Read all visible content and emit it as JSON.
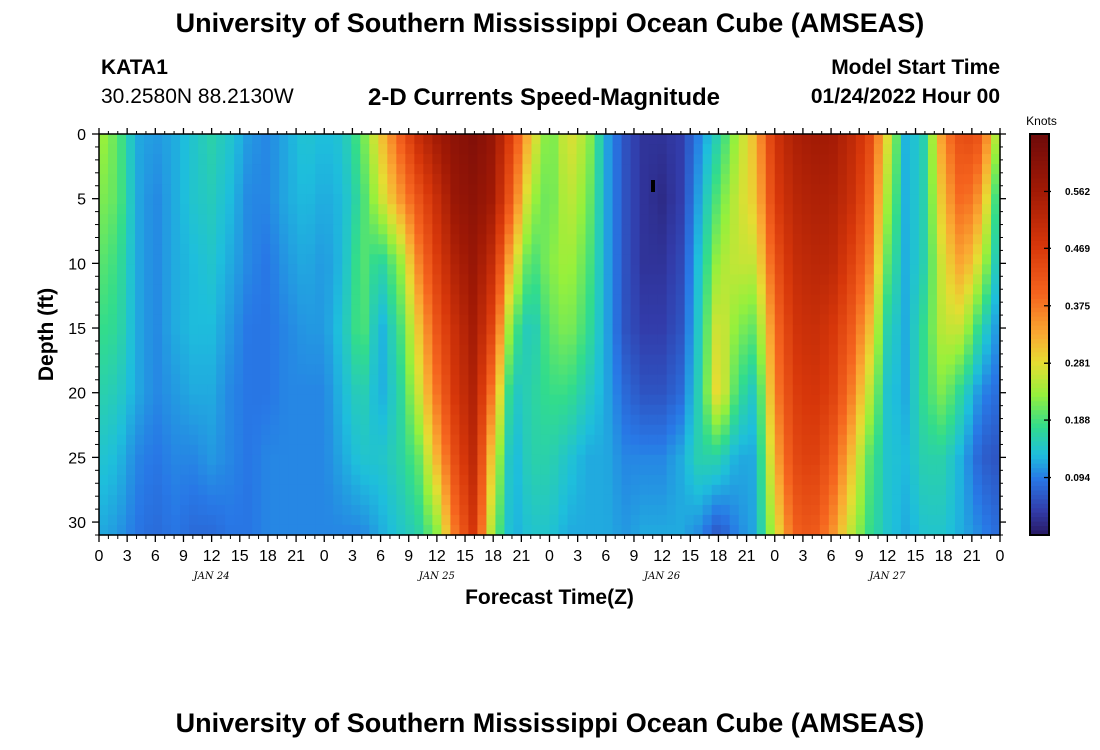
{
  "header": {
    "title": "University of Southern Mississippi Ocean Cube (AMSEAS)",
    "station_id": "KATA1",
    "coordinates": "30.2580N  88.2130W",
    "chart_title": "2-D Currents Speed-Magnitude",
    "model_start_label": "Model Start Time",
    "model_start_value": "01/24/2022 Hour 00"
  },
  "footer": {
    "title": "University of Southern Mississippi Ocean Cube (AMSEAS)"
  },
  "chart_data": {
    "type": "heatmap",
    "title": "2-D Currents Speed-Magnitude",
    "xlabel": "Forecast Time(Z)",
    "ylabel": "Depth (ft)",
    "x_unit": "hours since 01/24/2022 00Z",
    "xlim": [
      0,
      96
    ],
    "ylim": [
      0,
      31
    ],
    "y_inverted": true,
    "x_tick_values": [
      0,
      3,
      6,
      9,
      12,
      15,
      18,
      21,
      24,
      27,
      30,
      33,
      36,
      39,
      42,
      45,
      48,
      51,
      54,
      57,
      60,
      63,
      66,
      69,
      72,
      75,
      78,
      81,
      84,
      87,
      90,
      93,
      96
    ],
    "x_tick_labels": [
      "0",
      "3",
      "6",
      "9",
      "12",
      "15",
      "18",
      "21",
      "0",
      "3",
      "6",
      "9",
      "12",
      "15",
      "18",
      "21",
      "0",
      "3",
      "6",
      "9",
      "12",
      "15",
      "18",
      "21",
      "0",
      "3",
      "6",
      "9",
      "12",
      "15",
      "18",
      "21",
      "0"
    ],
    "date_labels": [
      {
        "hour": 12,
        "label": "JAN 24"
      },
      {
        "hour": 36,
        "label": "JAN 25"
      },
      {
        "hour": 60,
        "label": "JAN 26"
      },
      {
        "hour": 84,
        "label": "JAN 27"
      }
    ],
    "y_tick_values": [
      0,
      5,
      10,
      15,
      20,
      25,
      30
    ],
    "y_tick_labels": [
      "0",
      "5",
      "10",
      "15",
      "20",
      "25",
      "30"
    ],
    "colorbar": {
      "unit": "Knots",
      "min": 0.0,
      "max": 0.656,
      "ticks": [
        0.094,
        0.188,
        0.281,
        0.375,
        0.469,
        0.562
      ],
      "tick_labels": [
        "0.094",
        "0.188",
        "0.281",
        "0.375",
        "0.469",
        "0.562"
      ]
    },
    "depths_ft": [
      0,
      5,
      10,
      15,
      20,
      25,
      31
    ],
    "hours": [
      0,
      2,
      4,
      6,
      8,
      10,
      12,
      14,
      16,
      18,
      20,
      22,
      24,
      26,
      28,
      30,
      32,
      34,
      36,
      38,
      40,
      42,
      44,
      46,
      48,
      50,
      52,
      54,
      56,
      58,
      60,
      62,
      64,
      66,
      68,
      70,
      72,
      74,
      76,
      78,
      80,
      82,
      84,
      86,
      88,
      90,
      92,
      94,
      96
    ],
    "speed_knots": [
      [
        0.24,
        0.2,
        0.12,
        0.11,
        0.12,
        0.14,
        0.16,
        0.14,
        0.11,
        0.1,
        0.12,
        0.14,
        0.13,
        0.14,
        0.2,
        0.3,
        0.4,
        0.5,
        0.56,
        0.6,
        0.62,
        0.58,
        0.45,
        0.3,
        0.2,
        0.28,
        0.24,
        0.12,
        0.06,
        0.03,
        0.03,
        0.04,
        0.1,
        0.16,
        0.24,
        0.32,
        0.48,
        0.54,
        0.56,
        0.56,
        0.52,
        0.45,
        0.28,
        0.12,
        0.16,
        0.36,
        0.44,
        0.42,
        0.2
      ],
      [
        0.22,
        0.2,
        0.12,
        0.1,
        0.12,
        0.14,
        0.15,
        0.13,
        0.1,
        0.1,
        0.12,
        0.13,
        0.12,
        0.13,
        0.18,
        0.26,
        0.34,
        0.42,
        0.5,
        0.58,
        0.6,
        0.56,
        0.4,
        0.24,
        0.2,
        0.26,
        0.22,
        0.12,
        0.06,
        0.03,
        0.02,
        0.04,
        0.12,
        0.2,
        0.26,
        0.3,
        0.46,
        0.52,
        0.54,
        0.54,
        0.5,
        0.42,
        0.24,
        0.12,
        0.16,
        0.32,
        0.4,
        0.34,
        0.14
      ],
      [
        0.2,
        0.18,
        0.12,
        0.1,
        0.12,
        0.13,
        0.14,
        0.12,
        0.1,
        0.09,
        0.11,
        0.12,
        0.11,
        0.13,
        0.2,
        0.16,
        0.22,
        0.36,
        0.46,
        0.54,
        0.58,
        0.5,
        0.3,
        0.18,
        0.22,
        0.24,
        0.2,
        0.12,
        0.06,
        0.03,
        0.03,
        0.05,
        0.14,
        0.24,
        0.26,
        0.26,
        0.42,
        0.5,
        0.52,
        0.52,
        0.46,
        0.38,
        0.2,
        0.12,
        0.16,
        0.28,
        0.34,
        0.26,
        0.12
      ],
      [
        0.18,
        0.17,
        0.12,
        0.1,
        0.12,
        0.13,
        0.13,
        0.11,
        0.09,
        0.09,
        0.1,
        0.11,
        0.11,
        0.14,
        0.2,
        0.12,
        0.18,
        0.3,
        0.42,
        0.5,
        0.56,
        0.44,
        0.2,
        0.14,
        0.2,
        0.22,
        0.18,
        0.12,
        0.06,
        0.04,
        0.04,
        0.06,
        0.15,
        0.28,
        0.22,
        0.2,
        0.38,
        0.48,
        0.5,
        0.48,
        0.42,
        0.32,
        0.16,
        0.12,
        0.18,
        0.26,
        0.26,
        0.16,
        0.1
      ],
      [
        0.16,
        0.15,
        0.12,
        0.1,
        0.11,
        0.12,
        0.12,
        0.1,
        0.09,
        0.09,
        0.1,
        0.1,
        0.1,
        0.13,
        0.16,
        0.12,
        0.16,
        0.26,
        0.38,
        0.48,
        0.54,
        0.36,
        0.14,
        0.16,
        0.18,
        0.18,
        0.15,
        0.12,
        0.08,
        0.06,
        0.06,
        0.08,
        0.16,
        0.3,
        0.18,
        0.14,
        0.36,
        0.46,
        0.48,
        0.46,
        0.38,
        0.26,
        0.14,
        0.12,
        0.18,
        0.22,
        0.16,
        0.1,
        0.08
      ],
      [
        0.14,
        0.13,
        0.1,
        0.09,
        0.1,
        0.1,
        0.11,
        0.1,
        0.09,
        0.1,
        0.1,
        0.1,
        0.1,
        0.12,
        0.14,
        0.14,
        0.16,
        0.2,
        0.32,
        0.44,
        0.52,
        0.28,
        0.12,
        0.16,
        0.16,
        0.14,
        0.12,
        0.12,
        0.1,
        0.1,
        0.1,
        0.12,
        0.16,
        0.16,
        0.12,
        0.12,
        0.32,
        0.44,
        0.46,
        0.42,
        0.32,
        0.2,
        0.14,
        0.13,
        0.16,
        0.16,
        0.12,
        0.07,
        0.06
      ],
      [
        0.12,
        0.11,
        0.09,
        0.08,
        0.09,
        0.08,
        0.08,
        0.09,
        0.09,
        0.1,
        0.1,
        0.1,
        0.1,
        0.1,
        0.1,
        0.12,
        0.14,
        0.16,
        0.22,
        0.38,
        0.48,
        0.22,
        0.12,
        0.14,
        0.14,
        0.12,
        0.12,
        0.12,
        0.11,
        0.12,
        0.12,
        0.12,
        0.1,
        0.06,
        0.1,
        0.12,
        0.26,
        0.4,
        0.42,
        0.36,
        0.26,
        0.18,
        0.14,
        0.12,
        0.14,
        0.14,
        0.12,
        0.1,
        0.08
      ]
    ]
  }
}
